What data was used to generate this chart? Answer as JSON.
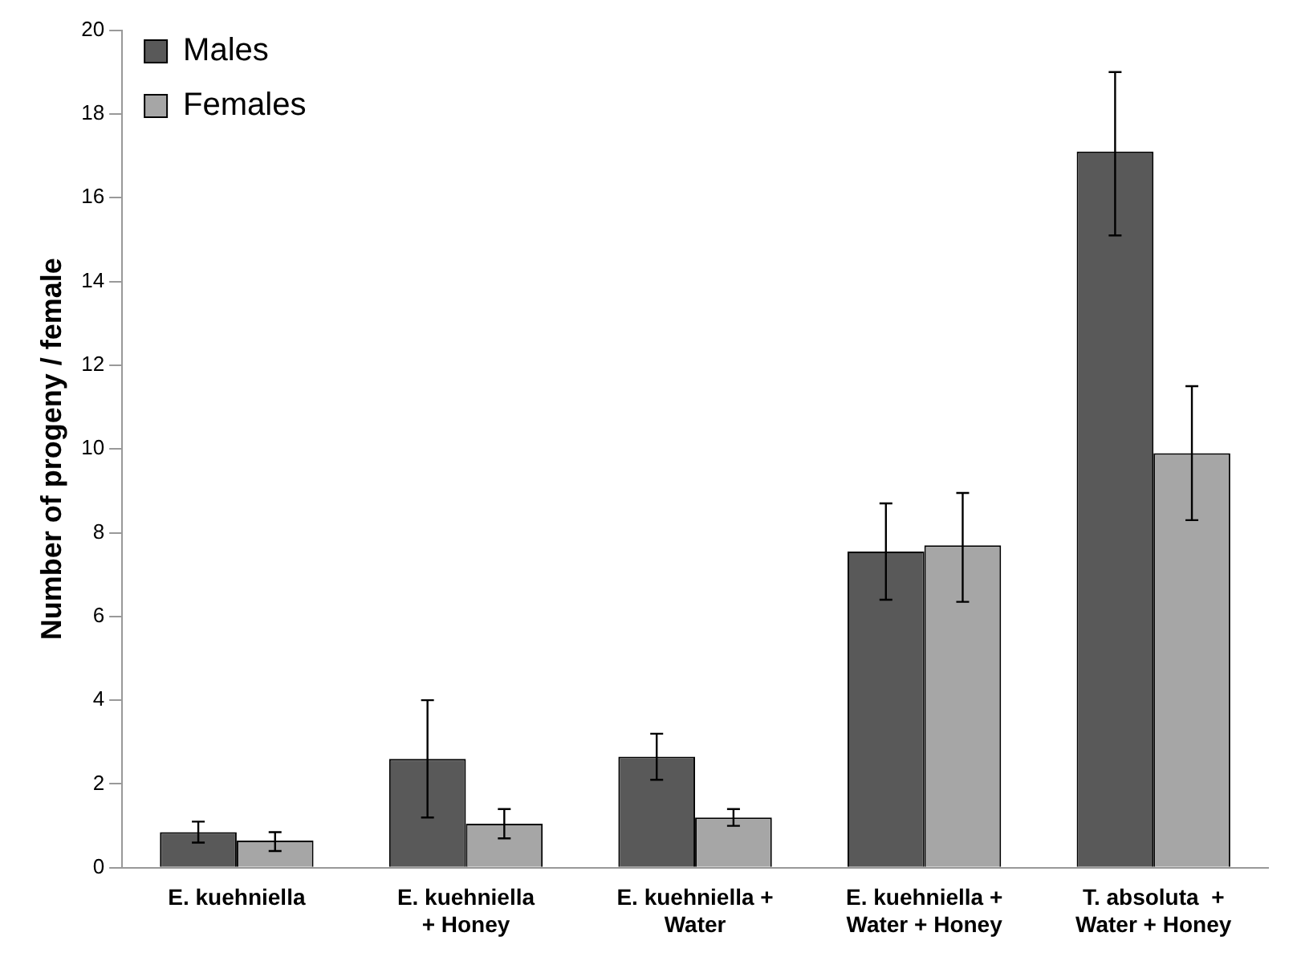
{
  "chart_data": {
    "type": "bar",
    "ylabel": "Number of progeny / female",
    "categories": [
      "E. kuehniella",
      "E. kuehniella\n+ Honey",
      "E. kuehniella +\nWater",
      "E. kuehniella +\nWater + Honey",
      "T. absoluta  +\nWater + Honey"
    ],
    "series": [
      {
        "name": "Males",
        "color": "#595959",
        "values": [
          0.85,
          2.6,
          2.65,
          7.55,
          17.1
        ],
        "errors": [
          [
            0.6,
            1.1
          ],
          [
            1.2,
            4.0
          ],
          [
            2.1,
            3.2
          ],
          [
            6.4,
            8.7
          ],
          [
            15.1,
            19.0
          ]
        ]
      },
      {
        "name": "Females",
        "color": "#a6a6a6",
        "values": [
          0.65,
          1.05,
          1.2,
          7.7,
          9.9
        ],
        "errors": [
          [
            0.4,
            0.85
          ],
          [
            0.7,
            1.4
          ],
          [
            1.0,
            1.4
          ],
          [
            6.35,
            8.95
          ],
          [
            8.3,
            11.5
          ]
        ]
      }
    ],
    "ylim": [
      0,
      20
    ],
    "yticks": [
      0,
      2,
      4,
      6,
      8,
      10,
      12,
      14,
      16,
      18,
      20
    ],
    "grid": false,
    "legend": "top left"
  }
}
